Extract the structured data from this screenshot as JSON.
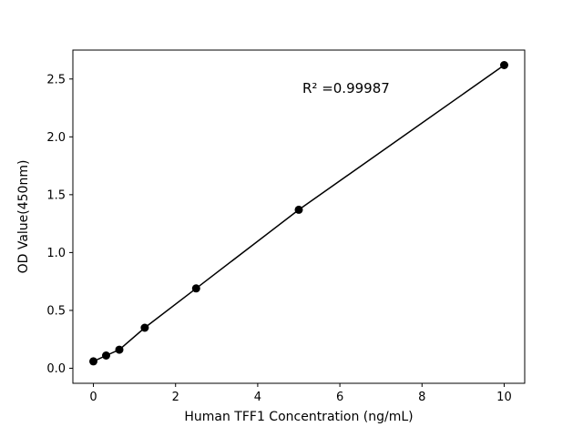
{
  "chart_data": {
    "type": "scatter",
    "title": "",
    "xlabel": "Human TFF1 Concentration (ng/mL)",
    "ylabel": "OD Value(450nm)",
    "x": [
      0,
      0.31,
      0.63,
      1.25,
      2.5,
      5,
      10
    ],
    "y": [
      0.06,
      0.11,
      0.16,
      0.35,
      0.69,
      1.37,
      2.62
    ],
    "line": true,
    "xlim": [
      -0.5,
      10.5
    ],
    "ylim": [
      -0.13,
      2.75
    ],
    "xticks": [
      0,
      2,
      4,
      6,
      8,
      10
    ],
    "xtick_labels": [
      "0",
      "2",
      "4",
      "6",
      "8",
      "10"
    ],
    "yticks": [
      0.0,
      0.5,
      1.0,
      1.5,
      2.0,
      2.5
    ],
    "ytick_labels": [
      "0.0",
      "0.5",
      "1.0",
      "1.5",
      "2.0",
      "2.5"
    ],
    "annotation": {
      "text": "R² =0.99987",
      "x": 6.15,
      "y": 2.38
    },
    "grid": false,
    "legend": null,
    "marker_color": "#000000",
    "line_color": "#000000",
    "background": "#ffffff"
  }
}
